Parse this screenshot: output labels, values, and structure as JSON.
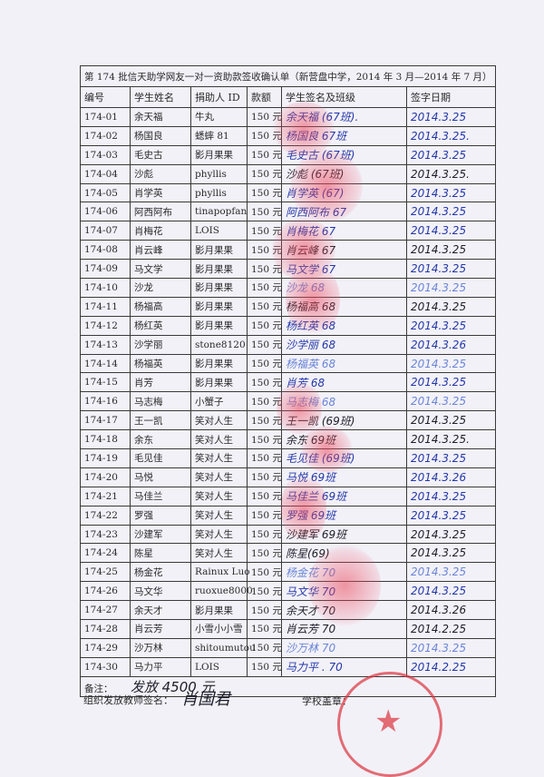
{
  "document": {
    "title": "第 174 批信天助学网友一对一资助款签收确认单（新营盘中学，2014 年 3 月—2014 年 7 月）",
    "columns": [
      "编号",
      "学生姓名",
      "捐助人 ID",
      "款额",
      "学生签名及班级",
      "签字日期"
    ],
    "rows": [
      {
        "id": "174-01",
        "name": "余天福",
        "donor": "牛丸",
        "amount": "150 元",
        "signature": "余天福 (67班).",
        "date": "2014.3.25",
        "ink": "blue"
      },
      {
        "id": "174-02",
        "name": "杨国良",
        "donor": "蟋蟀 81",
        "amount": "150 元",
        "signature": "杨国良 67班",
        "date": "2014.3.25.",
        "ink": "blue"
      },
      {
        "id": "174-03",
        "name": "毛史古",
        "donor": "影月果果",
        "amount": "150 元",
        "signature": "毛史古 (67班)",
        "date": "2014.3.25",
        "ink": "blue"
      },
      {
        "id": "174-04",
        "name": "沙彪",
        "donor": "phyllis",
        "amount": "150 元",
        "signature": "沙彪 (67班)",
        "date": "2014.3.25.",
        "ink": "black"
      },
      {
        "id": "174-05",
        "name": "肖学英",
        "donor": "phyllis",
        "amount": "150 元",
        "signature": "肖学英 (67)",
        "date": "2014.3.25",
        "ink": "blue"
      },
      {
        "id": "174-06",
        "name": "阿西阿布",
        "donor": "tinapopfan",
        "amount": "150 元",
        "signature": "阿西阿布 67",
        "date": "2014.3.25",
        "ink": "blue"
      },
      {
        "id": "174-07",
        "name": "肖梅花",
        "donor": "LOIS",
        "amount": "150 元",
        "signature": "肖梅花 67",
        "date": "2014.3.25",
        "ink": "blue"
      },
      {
        "id": "174-08",
        "name": "肖云峰",
        "donor": "影月果果",
        "amount": "150 元",
        "signature": "肖云峰 67",
        "date": "2014.3.25",
        "ink": "black"
      },
      {
        "id": "174-09",
        "name": "马文学",
        "donor": "影月果果",
        "amount": "150 元",
        "signature": "马文学 67",
        "date": "2014.3.25",
        "ink": "blue"
      },
      {
        "id": "174-10",
        "name": "沙龙",
        "donor": "影月果果",
        "amount": "150 元",
        "signature": "沙龙 68",
        "date": "2014.3.25",
        "ink": "light"
      },
      {
        "id": "174-11",
        "name": "杨福高",
        "donor": "影月果果",
        "amount": "150 元",
        "signature": "杨福高 68",
        "date": "2014.3.25",
        "ink": "black"
      },
      {
        "id": "174-12",
        "name": "杨红英",
        "donor": "影月果果",
        "amount": "150 元",
        "signature": "杨红英 68",
        "date": "2014.3.25",
        "ink": "blue"
      },
      {
        "id": "174-13",
        "name": "沙学丽",
        "donor": "stone8120",
        "amount": "150 元",
        "signature": "沙学丽 68",
        "date": "2014.3.26",
        "ink": "blue"
      },
      {
        "id": "174-14",
        "name": "杨福英",
        "donor": "影月果果",
        "amount": "150 元",
        "signature": "杨福英 68",
        "date": "2014.3.25",
        "ink": "light"
      },
      {
        "id": "174-15",
        "name": "肖芳",
        "donor": "影月果果",
        "amount": "150 元",
        "signature": "肖芳 68",
        "date": "2014.3.25",
        "ink": "blue"
      },
      {
        "id": "174-16",
        "name": "马志梅",
        "donor": "小蟹子",
        "amount": "150 元",
        "signature": "马志梅 68",
        "date": "2014.3.25",
        "ink": "light"
      },
      {
        "id": "174-17",
        "name": "王一凯",
        "donor": "笑对人生",
        "amount": "150 元",
        "signature": "王一凯 (69班)",
        "date": "2014.3.25",
        "ink": "black"
      },
      {
        "id": "174-18",
        "name": "余东",
        "donor": "笑对人生",
        "amount": "150 元",
        "signature": "余东 69班",
        "date": "2014.3.25.",
        "ink": "black"
      },
      {
        "id": "174-19",
        "name": "毛见佳",
        "donor": "笑对人生",
        "amount": "150 元",
        "signature": "毛见佳 (69班)",
        "date": "2014.3.25",
        "ink": "blue"
      },
      {
        "id": "174-20",
        "name": "马悦",
        "donor": "笑对人生",
        "amount": "150 元",
        "signature": "马悦 69班",
        "date": "2014.3.26",
        "ink": "blue"
      },
      {
        "id": "174-21",
        "name": "马佳兰",
        "donor": "笑对人生",
        "amount": "150 元",
        "signature": "马佳兰 69班",
        "date": "2014.3.25",
        "ink": "blue"
      },
      {
        "id": "174-22",
        "name": "罗强",
        "donor": "笑对人生",
        "amount": "150 元",
        "signature": "罗强 69班",
        "date": "2014.3.25",
        "ink": "blue"
      },
      {
        "id": "174-23",
        "name": "沙建军",
        "donor": "笑对人生",
        "amount": "150 元",
        "signature": "沙建军 69班",
        "date": "2014.3.25",
        "ink": "black"
      },
      {
        "id": "174-24",
        "name": "陈星",
        "donor": "笑对人生",
        "amount": "150 元",
        "signature": "陈星(69)",
        "date": "2014.3.25",
        "ink": "black"
      },
      {
        "id": "174-25",
        "name": "杨金花",
        "donor": "Rainux Luo",
        "amount": "150 元",
        "signature": "杨金花 70",
        "date": "2014.3.25",
        "ink": "light"
      },
      {
        "id": "174-26",
        "name": "马文华",
        "donor": "ruoxue8000",
        "amount": "150 元",
        "signature": "马文华 70",
        "date": "2014.3.25",
        "ink": "blue"
      },
      {
        "id": "174-27",
        "name": "余天才",
        "donor": "影月果果",
        "amount": "150 元",
        "signature": "余天才 70",
        "date": "2014.3.26",
        "ink": "black"
      },
      {
        "id": "174-28",
        "name": "肖云芳",
        "donor": "小雪小小雪",
        "amount": "150 元",
        "signature": "肖云芳 70",
        "date": "2014.2.25",
        "ink": "black"
      },
      {
        "id": "174-29",
        "name": "沙万林",
        "donor": "shitoumutou",
        "amount": "150 元",
        "signature": "沙万林 70",
        "date": "2014.3.25",
        "ink": "light"
      },
      {
        "id": "174-30",
        "name": "马力平",
        "donor": "LOIS",
        "amount": "150 元",
        "signature": "马力平 . 70",
        "date": "2014.2.25",
        "ink": "blue"
      }
    ],
    "remarks_label": "备注：",
    "remarks_value": "发放 4500 元",
    "teacher_label": "组织发放教师签名：",
    "teacher_signature": "肖国君",
    "stamp_label": "学校盖章：",
    "colors": {
      "ink_blue": "#2438a8",
      "ink_black": "#1e1e2a",
      "ink_light": "#6b86d6",
      "seal_red": "#dc323c"
    }
  }
}
